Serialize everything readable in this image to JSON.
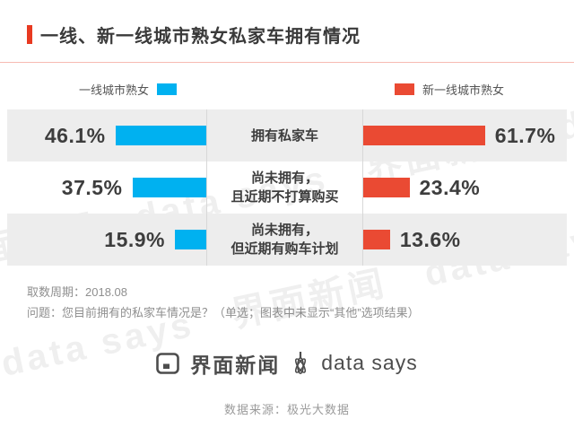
{
  "title": "一线、新一线城市熟女私家车拥有情况",
  "colors": {
    "accent_red": "#e83a21",
    "bar_blue": "#00b1f0",
    "bar_red": "#ea4a33",
    "row_shade": "#ededed"
  },
  "legend": {
    "left": {
      "label": "一线城市熟女",
      "color": "#00b1f0"
    },
    "right": {
      "label": "新一线城市熟女",
      "color": "#ea4a33"
    }
  },
  "chart_data": {
    "type": "bar",
    "layout": "butterfly",
    "unit": "%",
    "xlim": [
      0,
      70
    ],
    "categories": [
      "拥有私家车",
      "尚未拥有，\n且近期不打算购买",
      "尚未拥有，\n但近期有购车计划"
    ],
    "series": [
      {
        "name": "一线城市熟女",
        "side": "left",
        "color": "#00b1f0",
        "values": [
          46.1,
          37.5,
          15.9
        ]
      },
      {
        "name": "新一线城市熟女",
        "side": "right",
        "color": "#ea4a33",
        "values": [
          61.7,
          23.4,
          13.6
        ]
      }
    ],
    "rows": [
      {
        "category": "拥有私家车",
        "left": 46.1,
        "left_label": "46.1%",
        "right": 61.7,
        "right_label": "61.7%"
      },
      {
        "category": "尚未拥有，\n且近期不打算购买",
        "left": 37.5,
        "left_label": "37.5%",
        "right": 23.4,
        "right_label": "23.4%"
      },
      {
        "category": "尚未拥有，\n但近期有购车计划",
        "left": 15.9,
        "left_label": "15.9%",
        "right": 13.6,
        "right_label": "13.6%"
      }
    ]
  },
  "notes": {
    "period": "取数周期：2018.08",
    "question": "问题：您目前拥有的私家车情况是？（单选；图表中未显示“其他”选项结果）"
  },
  "footer": {
    "brand_left": "界面新闻",
    "brand_right": "data says",
    "source": "数据来源：极光大数据"
  },
  "watermark": "界面新闻　data says　界面新闻　data says"
}
